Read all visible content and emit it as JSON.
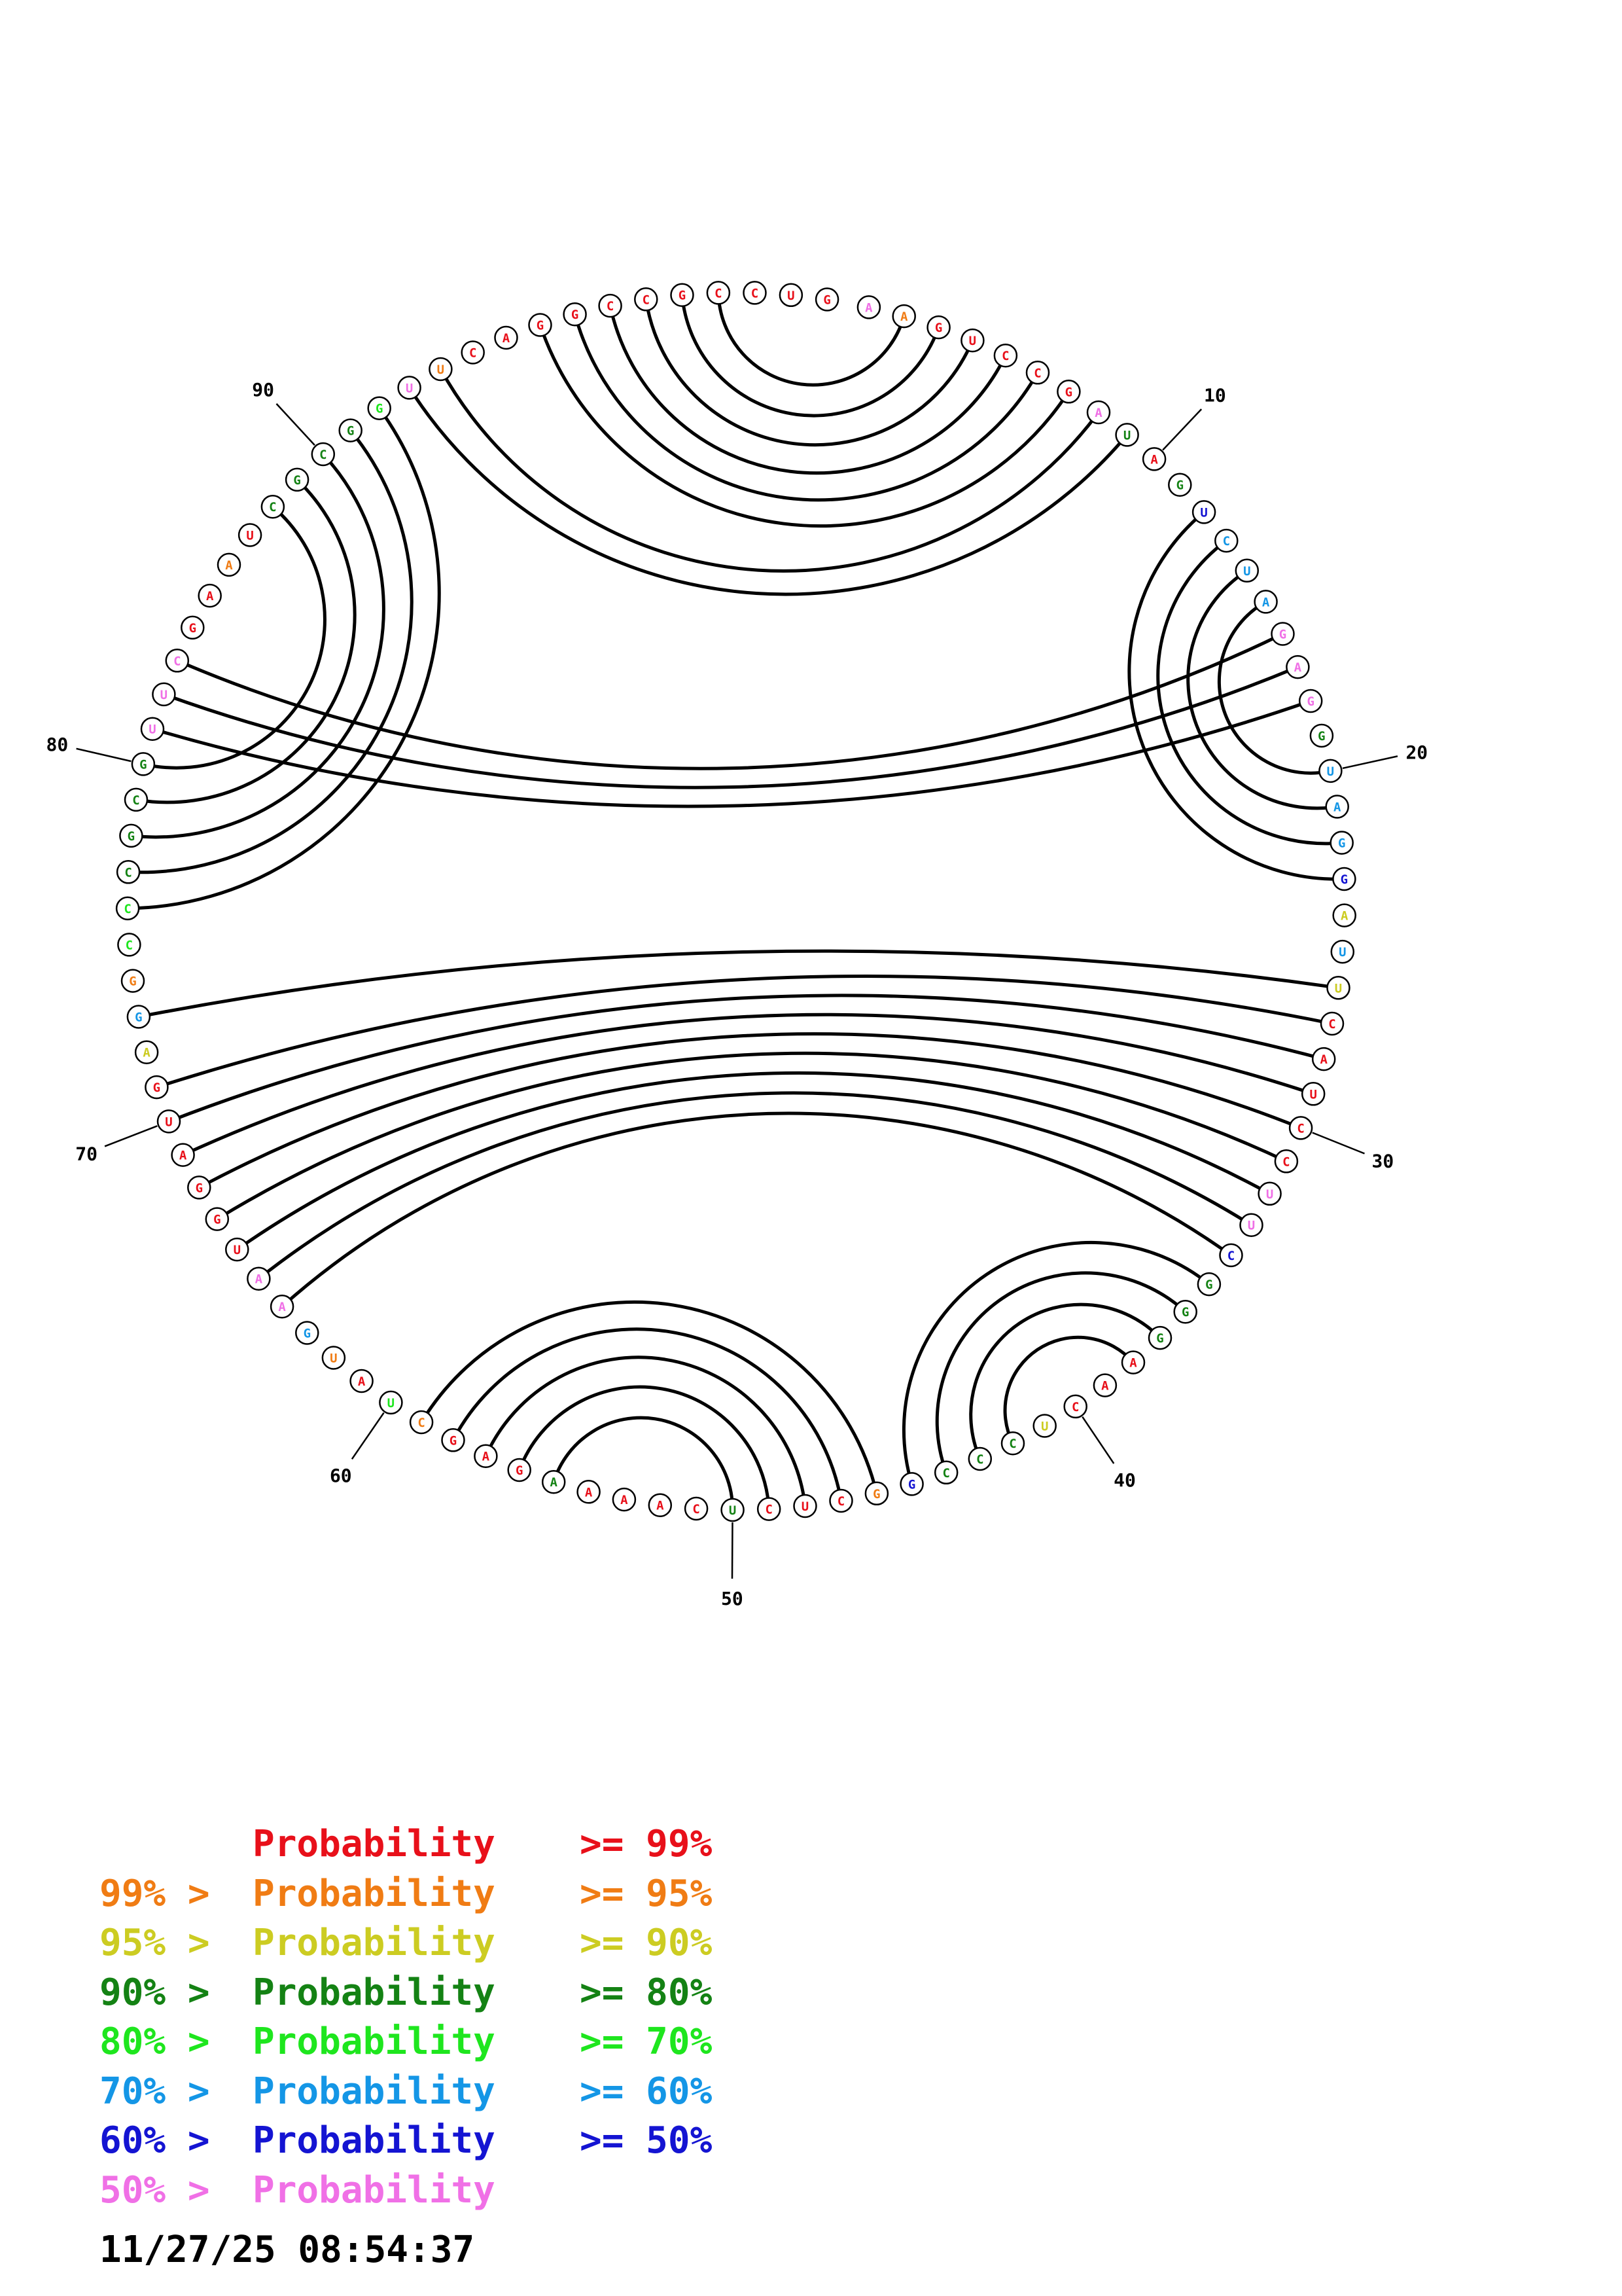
{
  "colors": {
    "p99": "#e8101a",
    "p95": "#f07c14",
    "p90": "#cccc22",
    "p80": "#148214",
    "p70": "#1ee61e",
    "p60": "#1496e6",
    "p50": "#1414d2",
    "plow": "#f070e6"
  },
  "sequence": [
    {
      "b": "A",
      "c": "plow"
    },
    {
      "b": "A",
      "c": "p95"
    },
    {
      "b": "G",
      "c": "p99"
    },
    {
      "b": "U",
      "c": "p99"
    },
    {
      "b": "C",
      "c": "p99"
    },
    {
      "b": "C",
      "c": "p99"
    },
    {
      "b": "G",
      "c": "p99"
    },
    {
      "b": "A",
      "c": "plow"
    },
    {
      "b": "U",
      "c": "p80"
    },
    {
      "b": "A",
      "c": "p99"
    },
    {
      "b": "G",
      "c": "p80"
    },
    {
      "b": "U",
      "c": "p50"
    },
    {
      "b": "C",
      "c": "p60"
    },
    {
      "b": "U",
      "c": "p60"
    },
    {
      "b": "A",
      "c": "p60"
    },
    {
      "b": "G",
      "c": "plow"
    },
    {
      "b": "A",
      "c": "plow"
    },
    {
      "b": "G",
      "c": "plow"
    },
    {
      "b": "G",
      "c": "p80"
    },
    {
      "b": "U",
      "c": "p60"
    },
    {
      "b": "A",
      "c": "p60"
    },
    {
      "b": "G",
      "c": "p60"
    },
    {
      "b": "G",
      "c": "p50"
    },
    {
      "b": "A",
      "c": "p90"
    },
    {
      "b": "U",
      "c": "p60"
    },
    {
      "b": "U",
      "c": "p90"
    },
    {
      "b": "C",
      "c": "p99"
    },
    {
      "b": "A",
      "c": "p99"
    },
    {
      "b": "U",
      "c": "p99"
    },
    {
      "b": "C",
      "c": "p99"
    },
    {
      "b": "C",
      "c": "p99"
    },
    {
      "b": "U",
      "c": "plow"
    },
    {
      "b": "U",
      "c": "plow"
    },
    {
      "b": "C",
      "c": "p50"
    },
    {
      "b": "G",
      "c": "p80"
    },
    {
      "b": "G",
      "c": "p80"
    },
    {
      "b": "G",
      "c": "p80"
    },
    {
      "b": "A",
      "c": "p99"
    },
    {
      "b": "A",
      "c": "p99"
    },
    {
      "b": "C",
      "c": "p99"
    },
    {
      "b": "U",
      "c": "p90"
    },
    {
      "b": "C",
      "c": "p80"
    },
    {
      "b": "C",
      "c": "p80"
    },
    {
      "b": "C",
      "c": "p80"
    },
    {
      "b": "G",
      "c": "p50"
    },
    {
      "b": "G",
      "c": "p95"
    },
    {
      "b": "C",
      "c": "p99"
    },
    {
      "b": "U",
      "c": "p99"
    },
    {
      "b": "C",
      "c": "p99"
    },
    {
      "b": "U",
      "c": "p80"
    },
    {
      "b": "C",
      "c": "p99"
    },
    {
      "b": "A",
      "c": "p99"
    },
    {
      "b": "A",
      "c": "p99"
    },
    {
      "b": "A",
      "c": "p99"
    },
    {
      "b": "A",
      "c": "p80"
    },
    {
      "b": "G",
      "c": "p99"
    },
    {
      "b": "A",
      "c": "p99"
    },
    {
      "b": "G",
      "c": "p99"
    },
    {
      "b": "C",
      "c": "p95"
    },
    {
      "b": "U",
      "c": "p70"
    },
    {
      "b": "A",
      "c": "p99"
    },
    {
      "b": "U",
      "c": "p95"
    },
    {
      "b": "G",
      "c": "p60"
    },
    {
      "b": "A",
      "c": "plow"
    },
    {
      "b": "A",
      "c": "plow"
    },
    {
      "b": "U",
      "c": "p99"
    },
    {
      "b": "G",
      "c": "p99"
    },
    {
      "b": "G",
      "c": "p99"
    },
    {
      "b": "A",
      "c": "p99"
    },
    {
      "b": "U",
      "c": "p99"
    },
    {
      "b": "G",
      "c": "p99"
    },
    {
      "b": "A",
      "c": "p90"
    },
    {
      "b": "G",
      "c": "p60"
    },
    {
      "b": "G",
      "c": "p95"
    },
    {
      "b": "C",
      "c": "p70"
    },
    {
      "b": "C",
      "c": "p70"
    },
    {
      "b": "C",
      "c": "p80"
    },
    {
      "b": "G",
      "c": "p80"
    },
    {
      "b": "C",
      "c": "p80"
    },
    {
      "b": "G",
      "c": "p80"
    },
    {
      "b": "U",
      "c": "plow"
    },
    {
      "b": "U",
      "c": "plow"
    },
    {
      "b": "C",
      "c": "plow"
    },
    {
      "b": "G",
      "c": "p99"
    },
    {
      "b": "A",
      "c": "p99"
    },
    {
      "b": "A",
      "c": "p95"
    },
    {
      "b": "U",
      "c": "p99"
    },
    {
      "b": "C",
      "c": "p80"
    },
    {
      "b": "G",
      "c": "p80"
    },
    {
      "b": "C",
      "c": "p80"
    },
    {
      "b": "G",
      "c": "p80"
    },
    {
      "b": "G",
      "c": "p70"
    },
    {
      "b": "U",
      "c": "plow"
    },
    {
      "b": "U",
      "c": "p95"
    },
    {
      "b": "C",
      "c": "p99"
    },
    {
      "b": "A",
      "c": "p99"
    },
    {
      "b": "G",
      "c": "p99"
    },
    {
      "b": "G",
      "c": "p99"
    },
    {
      "b": "C",
      "c": "p99"
    },
    {
      "b": "C",
      "c": "p99"
    },
    {
      "b": "G",
      "c": "p99"
    },
    {
      "b": "C",
      "c": "p99"
    },
    {
      "b": "C",
      "c": "p99"
    },
    {
      "b": "U",
      "c": "p99"
    },
    {
      "b": "G",
      "c": "p99"
    }
  ],
  "pairs": [
    [
      2,
      102
    ],
    [
      3,
      101
    ],
    [
      4,
      100
    ],
    [
      5,
      99
    ],
    [
      6,
      98
    ],
    [
      7,
      97
    ],
    [
      8,
      94
    ],
    [
      9,
      93
    ],
    [
      12,
      23
    ],
    [
      13,
      22
    ],
    [
      14,
      21
    ],
    [
      15,
      20
    ],
    [
      16,
      83
    ],
    [
      17,
      82
    ],
    [
      18,
      81
    ],
    [
      26,
      73
    ],
    [
      27,
      71
    ],
    [
      28,
      70
    ],
    [
      29,
      69
    ],
    [
      30,
      68
    ],
    [
      31,
      67
    ],
    [
      32,
      66
    ],
    [
      33,
      65
    ],
    [
      34,
      64
    ],
    [
      35,
      45
    ],
    [
      36,
      44
    ],
    [
      37,
      43
    ],
    [
      38,
      42
    ],
    [
      46,
      59
    ],
    [
      47,
      58
    ],
    [
      48,
      57
    ],
    [
      49,
      56
    ],
    [
      50,
      55
    ],
    [
      76,
      92
    ],
    [
      77,
      91
    ],
    [
      78,
      90
    ],
    [
      79,
      89
    ],
    [
      80,
      88
    ]
  ],
  "index_labels": [
    "10",
    "20",
    "30",
    "40",
    "50",
    "60",
    "70",
    "80",
    "90"
  ],
  "legend": [
    {
      "pre": "",
      "mid": "Probability",
      "post": ">= 99%",
      "color": "p99"
    },
    {
      "pre": "99% >",
      "mid": "Probability",
      "post": ">= 95%",
      "color": "p95"
    },
    {
      "pre": "95% >",
      "mid": "Probability",
      "post": ">= 90%",
      "color": "p90"
    },
    {
      "pre": "90% >",
      "mid": "Probability",
      "post": ">= 80%",
      "color": "p80"
    },
    {
      "pre": "80% >",
      "mid": "Probability",
      "post": ">= 70%",
      "color": "p70"
    },
    {
      "pre": "70% >",
      "mid": "Probability",
      "post": ">= 60%",
      "color": "p60"
    },
    {
      "pre": "60% >",
      "mid": "Probability",
      "post": ">= 50%",
      "color": "p50"
    },
    {
      "pre": "50% >",
      "mid": "Probability",
      "post": "",
      "color": "plow"
    }
  ],
  "timestamp": "11/27/25 08:54:37"
}
